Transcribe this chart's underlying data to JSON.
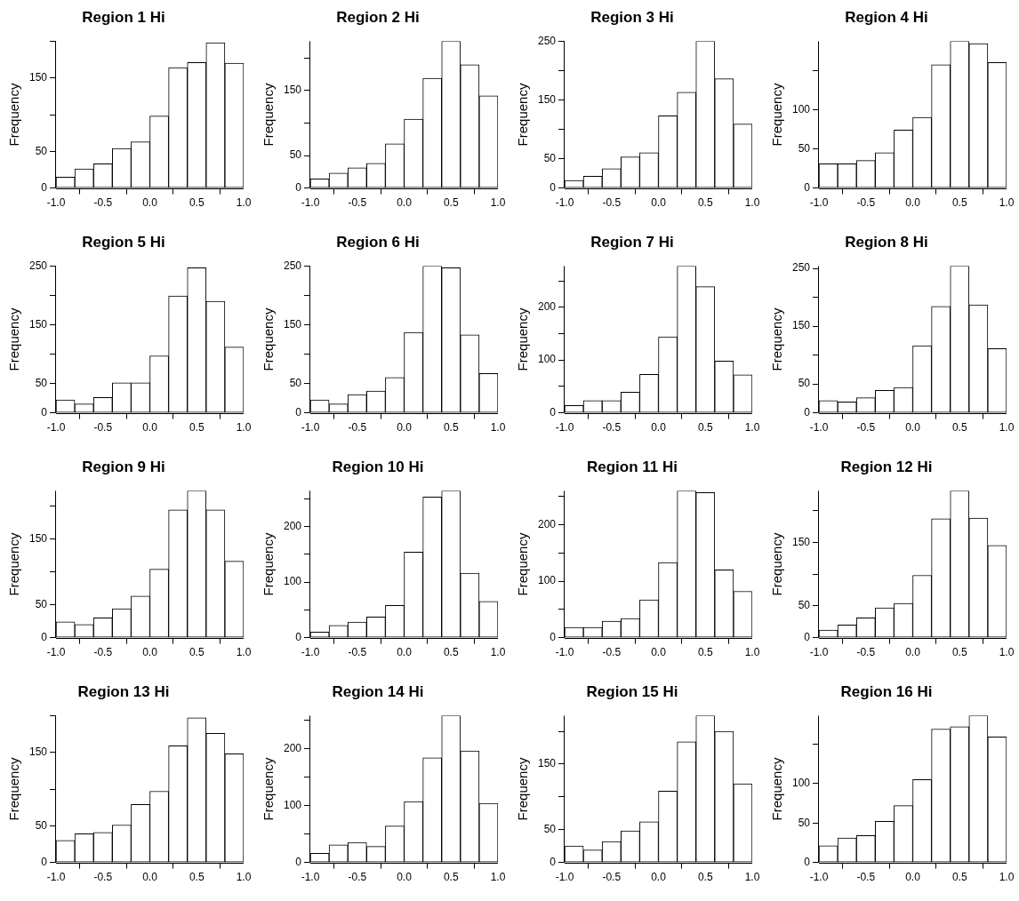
{
  "chart_data": [
    {
      "type": "histogram",
      "title": "Region 1 Hi",
      "ylabel": "Frequency",
      "color": "#ffffff",
      "bins": [
        -1,
        -0.8,
        -0.6,
        -0.4,
        -0.2,
        0,
        0.2,
        0.4,
        0.6,
        0.8,
        1
      ],
      "values": [
        15,
        26,
        33,
        54,
        63,
        98,
        164,
        171,
        198,
        170
      ],
      "xlim": [
        -1,
        1
      ],
      "xticks": [
        {
          "value": -1,
          "label": "-1.0"
        },
        {
          "value": -0.5,
          "label": "-0.5"
        },
        {
          "value": 0,
          "label": "0.0"
        },
        {
          "value": 0.5,
          "label": "0.5"
        },
        {
          "value": 1,
          "label": "1.0"
        }
      ],
      "ylim": [
        0,
        200
      ],
      "yticks": [
        0,
        50,
        {
          "value": 100,
          "label": null
        },
        150,
        {
          "value": 200,
          "label": null
        }
      ]
    },
    {
      "type": "histogram",
      "title": "Region 2 Hi",
      "ylabel": "Frequency",
      "color": "#ffffff",
      "bins": [
        -1,
        -0.8,
        -0.6,
        -0.4,
        -0.2,
        0,
        0.2,
        0.4,
        0.6,
        0.8,
        1
      ],
      "values": [
        14,
        23,
        31,
        38,
        68,
        106,
        169,
        226,
        190,
        142
      ],
      "xlim": [
        -1,
        1
      ],
      "xticks": [
        {
          "value": -1,
          "label": "-1.0"
        },
        {
          "value": -0.5,
          "label": "-0.5"
        },
        {
          "value": 0,
          "label": "0.0"
        },
        {
          "value": 0.5,
          "label": "0.5"
        },
        {
          "value": 1,
          "label": "1.0"
        }
      ],
      "ylim": [
        0,
        226
      ],
      "yticks": [
        0,
        50,
        {
          "value": 100,
          "label": null
        },
        150,
        {
          "value": 200,
          "label": null
        }
      ]
    },
    {
      "type": "histogram",
      "title": "Region 3 Hi",
      "ylabel": "Frequency",
      "color": "#ffffff",
      "bins": [
        -1,
        -0.8,
        -0.6,
        -0.4,
        -0.2,
        0,
        0.2,
        0.4,
        0.6,
        0.8,
        1
      ],
      "values": [
        13,
        20,
        33,
        53,
        60,
        123,
        163,
        250,
        186,
        109
      ],
      "xlim": [
        -1,
        1
      ],
      "xticks": [
        {
          "value": -1,
          "label": "-1.0"
        },
        {
          "value": -0.5,
          "label": "-0.5"
        },
        {
          "value": 0,
          "label": "0.0"
        },
        {
          "value": 0.5,
          "label": "0.5"
        },
        {
          "value": 1,
          "label": "1.0"
        }
      ],
      "ylim": [
        0,
        250
      ],
      "yticks": [
        0,
        50,
        {
          "value": 100,
          "label": null
        },
        150,
        {
          "value": 200,
          "label": null
        },
        250
      ]
    },
    {
      "type": "histogram",
      "title": "Region 4 Hi",
      "ylabel": "Frequency",
      "color": "#ffffff",
      "bins": [
        -1,
        -0.8,
        -0.6,
        -0.4,
        -0.2,
        0,
        0.2,
        0.4,
        0.6,
        0.8,
        1
      ],
      "values": [
        31,
        31,
        35,
        45,
        74,
        90,
        157,
        187,
        184,
        160
      ],
      "xlim": [
        -1,
        1
      ],
      "xticks": [
        {
          "value": -1,
          "label": "-1.0"
        },
        {
          "value": -0.5,
          "label": "-0.5"
        },
        {
          "value": 0,
          "label": "0.0"
        },
        {
          "value": 0.5,
          "label": "0.5"
        },
        {
          "value": 1,
          "label": "1.0"
        }
      ],
      "ylim": [
        0,
        187
      ],
      "yticks": [
        0,
        50,
        100,
        {
          "value": 150,
          "label": null
        }
      ]
    },
    {
      "type": "histogram",
      "title": "Region 5 Hi",
      "ylabel": "Frequency",
      "color": "#ffffff",
      "bins": [
        -1,
        -0.8,
        -0.6,
        -0.4,
        -0.2,
        0,
        0.2,
        0.4,
        0.6,
        0.8,
        1
      ],
      "values": [
        22,
        15,
        26,
        51,
        51,
        97,
        199,
        247,
        190,
        112
      ],
      "xlim": [
        -1,
        1
      ],
      "xticks": [
        {
          "value": -1,
          "label": "-1.0"
        },
        {
          "value": -0.5,
          "label": "-0.5"
        },
        {
          "value": 0,
          "label": "0.0"
        },
        {
          "value": 0.5,
          "label": "0.5"
        },
        {
          "value": 1,
          "label": "1.0"
        }
      ],
      "ylim": [
        0,
        250
      ],
      "yticks": [
        0,
        50,
        {
          "value": 100,
          "label": null
        },
        150,
        {
          "value": 200,
          "label": null
        },
        250
      ]
    },
    {
      "type": "histogram",
      "title": "Region 6 Hi",
      "ylabel": "Frequency",
      "color": "#ffffff",
      "bins": [
        -1,
        -0.8,
        -0.6,
        -0.4,
        -0.2,
        0,
        0.2,
        0.4,
        0.6,
        0.8,
        1
      ],
      "values": [
        22,
        15,
        31,
        37,
        60,
        137,
        250,
        247,
        133,
        67
      ],
      "xlim": [
        -1,
        1
      ],
      "xticks": [
        {
          "value": -1,
          "label": "-1.0"
        },
        {
          "value": -0.5,
          "label": "-0.5"
        },
        {
          "value": 0,
          "label": "0.0"
        },
        {
          "value": 0.5,
          "label": "0.5"
        },
        {
          "value": 1,
          "label": "1.0"
        }
      ],
      "ylim": [
        0,
        250
      ],
      "yticks": [
        0,
        50,
        {
          "value": 100,
          "label": null
        },
        150,
        {
          "value": 200,
          "label": null
        },
        250
      ]
    },
    {
      "type": "histogram",
      "title": "Region 7 Hi",
      "ylabel": "Frequency",
      "color": "#ffffff",
      "bins": [
        -1,
        -0.8,
        -0.6,
        -0.4,
        -0.2,
        0,
        0.2,
        0.4,
        0.6,
        0.8,
        1
      ],
      "values": [
        14,
        23,
        23,
        39,
        73,
        144,
        278,
        239,
        98,
        72
      ],
      "xlim": [
        -1,
        1
      ],
      "xticks": [
        {
          "value": -1,
          "label": "-1.0"
        },
        {
          "value": -0.5,
          "label": "-0.5"
        },
        {
          "value": 0,
          "label": "0.0"
        },
        {
          "value": 0.5,
          "label": "0.5"
        },
        {
          "value": 1,
          "label": "1.0"
        }
      ],
      "ylim": [
        0,
        278
      ],
      "yticks": [
        0,
        {
          "value": 50,
          "label": null
        },
        100,
        {
          "value": 150,
          "label": null
        },
        200,
        {
          "value": 250,
          "label": null
        }
      ]
    },
    {
      "type": "histogram",
      "title": "Region 8 Hi",
      "ylabel": "Frequency",
      "color": "#ffffff",
      "bins": [
        -1,
        -0.8,
        -0.6,
        -0.4,
        -0.2,
        0,
        0.2,
        0.4,
        0.6,
        0.8,
        1
      ],
      "values": [
        21,
        19,
        26,
        39,
        44,
        116,
        184,
        254,
        187,
        111
      ],
      "xlim": [
        -1,
        1
      ],
      "xticks": [
        {
          "value": -1,
          "label": "-1.0"
        },
        {
          "value": -0.5,
          "label": "-0.5"
        },
        {
          "value": 0,
          "label": "0.0"
        },
        {
          "value": 0.5,
          "label": "0.5"
        },
        {
          "value": 1,
          "label": "1.0"
        }
      ],
      "ylim": [
        0,
        254
      ],
      "yticks": [
        0,
        50,
        {
          "value": 100,
          "label": null
        },
        150,
        {
          "value": 200,
          "label": null
        },
        250
      ]
    },
    {
      "type": "histogram",
      "title": "Region 9 Hi",
      "ylabel": "Frequency",
      "color": "#ffffff",
      "bins": [
        -1,
        -0.8,
        -0.6,
        -0.4,
        -0.2,
        0,
        0.2,
        0.4,
        0.6,
        0.8,
        1
      ],
      "values": [
        24,
        20,
        30,
        44,
        63,
        104,
        194,
        223,
        194,
        116
      ],
      "xlim": [
        -1,
        1
      ],
      "xticks": [
        {
          "value": -1,
          "label": "-1.0"
        },
        {
          "value": -0.5,
          "label": "-0.5"
        },
        {
          "value": 0,
          "label": "0.0"
        },
        {
          "value": 0.5,
          "label": "0.5"
        },
        {
          "value": 1,
          "label": "1.0"
        }
      ],
      "ylim": [
        0,
        223
      ],
      "yticks": [
        0,
        50,
        {
          "value": 100,
          "label": null
        },
        150,
        {
          "value": 200,
          "label": null
        }
      ]
    },
    {
      "type": "histogram",
      "title": "Region 10 Hi",
      "ylabel": "Frequency",
      "color": "#ffffff",
      "bins": [
        -1,
        -0.8,
        -0.6,
        -0.4,
        -0.2,
        0,
        0.2,
        0.4,
        0.6,
        0.8,
        1
      ],
      "values": [
        10,
        22,
        28,
        37,
        58,
        154,
        253,
        264,
        116,
        65
      ],
      "xlim": [
        -1,
        1
      ],
      "xticks": [
        {
          "value": -1,
          "label": "-1.0"
        },
        {
          "value": -0.5,
          "label": "-0.5"
        },
        {
          "value": 0,
          "label": "0.0"
        },
        {
          "value": 0.5,
          "label": "0.5"
        },
        {
          "value": 1,
          "label": "1.0"
        }
      ],
      "ylim": [
        0,
        264
      ],
      "yticks": [
        0,
        {
          "value": 50,
          "label": null
        },
        100,
        {
          "value": 150,
          "label": null
        },
        200,
        {
          "value": 250,
          "label": null
        }
      ]
    },
    {
      "type": "histogram",
      "title": "Region 11 Hi",
      "ylabel": "Frequency",
      "color": "#ffffff",
      "bins": [
        -1,
        -0.8,
        -0.6,
        -0.4,
        -0.2,
        0,
        0.2,
        0.4,
        0.6,
        0.8,
        1
      ],
      "values": [
        18,
        18,
        29,
        34,
        67,
        133,
        260,
        257,
        120,
        82
      ],
      "xlim": [
        -1,
        1
      ],
      "xticks": [
        {
          "value": -1,
          "label": "-1.0"
        },
        {
          "value": -0.5,
          "label": "-0.5"
        },
        {
          "value": 0,
          "label": "0.0"
        },
        {
          "value": 0.5,
          "label": "0.5"
        },
        {
          "value": 1,
          "label": "1.0"
        }
      ],
      "ylim": [
        0,
        260
      ],
      "yticks": [
        0,
        {
          "value": 50,
          "label": null
        },
        100,
        {
          "value": 150,
          "label": null
        },
        200,
        {
          "value": 250,
          "label": null
        }
      ]
    },
    {
      "type": "histogram",
      "title": "Region 12 Hi",
      "ylabel": "Frequency",
      "color": "#ffffff",
      "bins": [
        -1,
        -0.8,
        -0.6,
        -0.4,
        -0.2,
        0,
        0.2,
        0.4,
        0.6,
        0.8,
        1
      ],
      "values": [
        12,
        20,
        31,
        47,
        54,
        98,
        187,
        231,
        188,
        145
      ],
      "xlim": [
        -1,
        1
      ],
      "xticks": [
        {
          "value": -1,
          "label": "-1.0"
        },
        {
          "value": -0.5,
          "label": "-0.5"
        },
        {
          "value": 0,
          "label": "0.0"
        },
        {
          "value": 0.5,
          "label": "0.5"
        },
        {
          "value": 1,
          "label": "1.0"
        }
      ],
      "ylim": [
        0,
        231
      ],
      "yticks": [
        0,
        50,
        {
          "value": 100,
          "label": null
        },
        150,
        {
          "value": 200,
          "label": null
        }
      ]
    },
    {
      "type": "histogram",
      "title": "Region 13 Hi",
      "ylabel": "Frequency",
      "color": "#ffffff",
      "bins": [
        -1,
        -0.8,
        -0.6,
        -0.4,
        -0.2,
        0,
        0.2,
        0.4,
        0.6,
        0.8,
        1
      ],
      "values": [
        30,
        39,
        41,
        51,
        79,
        97,
        159,
        197,
        176,
        148
      ],
      "xlim": [
        -1,
        1
      ],
      "xticks": [
        {
          "value": -1,
          "label": "-1.0"
        },
        {
          "value": -0.5,
          "label": "-0.5"
        },
        {
          "value": 0,
          "label": "0.0"
        },
        {
          "value": 0.5,
          "label": "0.5"
        },
        {
          "value": 1,
          "label": "1.0"
        }
      ],
      "ylim": [
        0,
        200
      ],
      "yticks": [
        0,
        50,
        {
          "value": 100,
          "label": null
        },
        150,
        {
          "value": 200,
          "label": null
        }
      ]
    },
    {
      "type": "histogram",
      "title": "Region 14 Hi",
      "ylabel": "Frequency",
      "color": "#ffffff",
      "bins": [
        -1,
        -0.8,
        -0.6,
        -0.4,
        -0.2,
        0,
        0.2,
        0.4,
        0.6,
        0.8,
        1
      ],
      "values": [
        16,
        31,
        35,
        28,
        64,
        107,
        184,
        258,
        196,
        104
      ],
      "xlim": [
        -1,
        1
      ],
      "xticks": [
        {
          "value": -1,
          "label": "-1.0"
        },
        {
          "value": -0.5,
          "label": "-0.5"
        },
        {
          "value": 0,
          "label": "0.0"
        },
        {
          "value": 0.5,
          "label": "0.5"
        },
        {
          "value": 1,
          "label": "1.0"
        }
      ],
      "ylim": [
        0,
        258
      ],
      "yticks": [
        0,
        {
          "value": 50,
          "label": null
        },
        100,
        {
          "value": 150,
          "label": null
        },
        200,
        {
          "value": 250,
          "label": null
        }
      ]
    },
    {
      "type": "histogram",
      "title": "Region 15 Hi",
      "ylabel": "Frequency",
      "color": "#ffffff",
      "bins": [
        -1,
        -0.8,
        -0.6,
        -0.4,
        -0.2,
        0,
        0.2,
        0.4,
        0.6,
        0.8,
        1
      ],
      "values": [
        25,
        19,
        32,
        48,
        62,
        109,
        184,
        224,
        200,
        120
      ],
      "xlim": [
        -1,
        1
      ],
      "xticks": [
        {
          "value": -1,
          "label": "-1.0"
        },
        {
          "value": -0.5,
          "label": "-0.5"
        },
        {
          "value": 0,
          "label": "0.0"
        },
        {
          "value": 0.5,
          "label": "0.5"
        },
        {
          "value": 1,
          "label": "1.0"
        }
      ],
      "ylim": [
        0,
        224
      ],
      "yticks": [
        0,
        50,
        {
          "value": 100,
          "label": null
        },
        150,
        {
          "value": 200,
          "label": null
        }
      ]
    },
    {
      "type": "histogram",
      "title": "Region 16 Hi",
      "ylabel": "Frequency",
      "color": "#ffffff",
      "bins": [
        -1,
        -0.8,
        -0.6,
        -0.4,
        -0.2,
        0,
        0.2,
        0.4,
        0.6,
        0.8,
        1
      ],
      "values": [
        21,
        31,
        34,
        52,
        72,
        105,
        169,
        172,
        186,
        159
      ],
      "xlim": [
        -1,
        1
      ],
      "xticks": [
        {
          "value": -1,
          "label": "-1.0"
        },
        {
          "value": -0.5,
          "label": "-0.5"
        },
        {
          "value": 0,
          "label": "0.0"
        },
        {
          "value": 0.5,
          "label": "0.5"
        },
        {
          "value": 1,
          "label": "1.0"
        }
      ],
      "ylim": [
        0,
        186
      ],
      "yticks": [
        0,
        50,
        100,
        {
          "value": 150,
          "label": null
        }
      ]
    }
  ]
}
